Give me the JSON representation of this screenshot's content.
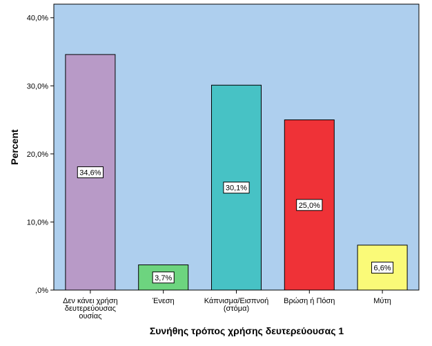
{
  "chart_data": {
    "type": "bar",
    "title": "",
    "xlabel": "Συνήθης τρόπος χρήσης δευτερεύουσας 1",
    "ylabel": "Percent",
    "ylim": [
      0,
      42
    ],
    "yticks": [
      0,
      10,
      20,
      30,
      40
    ],
    "ytick_labels": [
      ",0%",
      "10,0%",
      "20,0%",
      "30,0%",
      "40,0%"
    ],
    "grid": false,
    "categories": [
      [
        "Δεν κάνει χρήση",
        "δευτερεύουσας",
        "ουσίας"
      ],
      [
        "Ένεση"
      ],
      [
        "Κάπνισμα/Εισπνοή",
        "(στόμα)"
      ],
      [
        "Βρώση ή Πόση"
      ],
      [
        "Μύτη"
      ]
    ],
    "values": [
      34.6,
      3.7,
      30.1,
      25.0,
      6.6
    ],
    "data_labels": [
      "34,6%",
      "3,7%",
      "30,1%",
      "25,0%",
      "6,6%"
    ],
    "colors": {
      "background": "#ffffff",
      "plot_bg": "#aecfee",
      "bars": [
        "#b89ac7",
        "#6dd47f",
        "#47c2c5",
        "#ef3237",
        "#fafa78"
      ],
      "axis": "#000000"
    }
  }
}
